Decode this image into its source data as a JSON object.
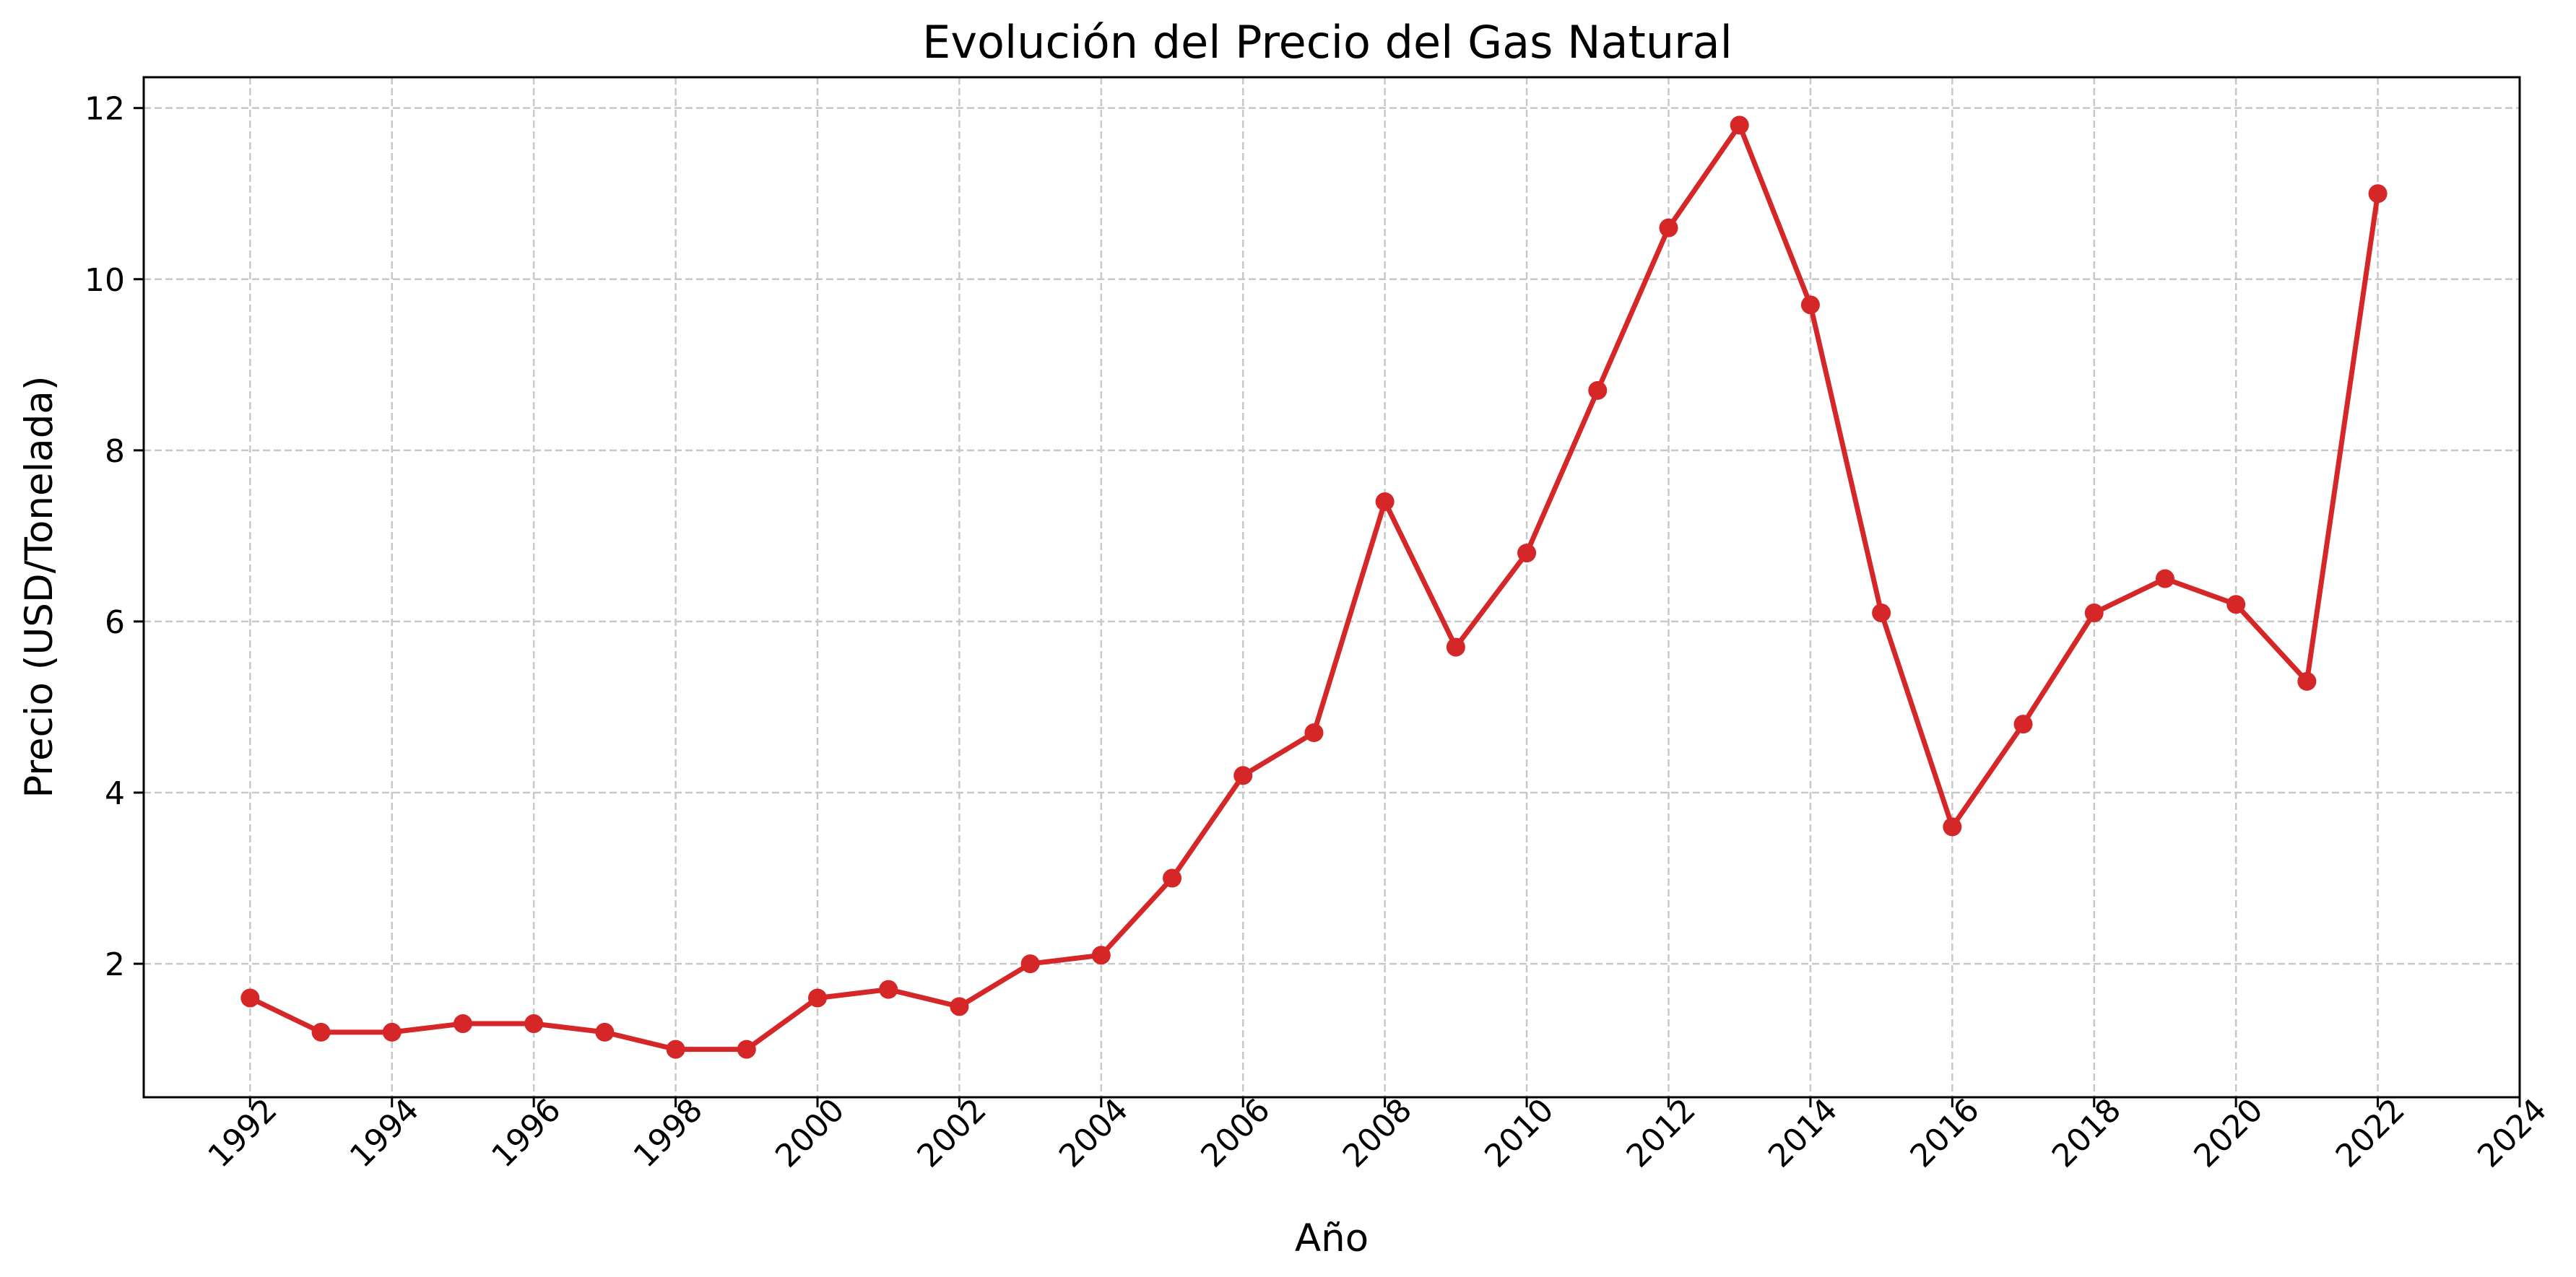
{
  "chart_data": {
    "type": "line",
    "title": "Evolución del Precio del Gas Natural",
    "xlabel": "Año",
    "ylabel": "Precio (USD/Tonelada)",
    "xlim": [
      1990.5,
      2024
    ],
    "ylim": [
      0.44,
      12.36
    ],
    "xticks": [
      1992,
      1994,
      1996,
      1998,
      2000,
      2002,
      2004,
      2006,
      2008,
      2010,
      2012,
      2014,
      2016,
      2018,
      2020,
      2022,
      2024
    ],
    "yticks": [
      2,
      4,
      6,
      8,
      10,
      12
    ],
    "grid": true,
    "series": [
      {
        "color": "#d62728",
        "x": [
          1992,
          1993,
          1994,
          1995,
          1996,
          1997,
          1998,
          1999,
          2000,
          2001,
          2002,
          2003,
          2004,
          2005,
          2006,
          2007,
          2008,
          2009,
          2010,
          2011,
          2012,
          2013,
          2014,
          2015,
          2016,
          2017,
          2018,
          2019,
          2020,
          2021,
          2022
        ],
        "y": [
          1.6,
          1.2,
          1.2,
          1.3,
          1.3,
          1.2,
          1.0,
          1.0,
          1.6,
          1.7,
          1.5,
          2.0,
          2.1,
          3.0,
          4.2,
          4.7,
          7.4,
          5.7,
          6.8,
          8.7,
          10.6,
          11.8,
          9.7,
          6.1,
          3.6,
          4.8,
          6.1,
          6.5,
          6.2,
          5.3,
          11.0
        ]
      }
    ]
  }
}
